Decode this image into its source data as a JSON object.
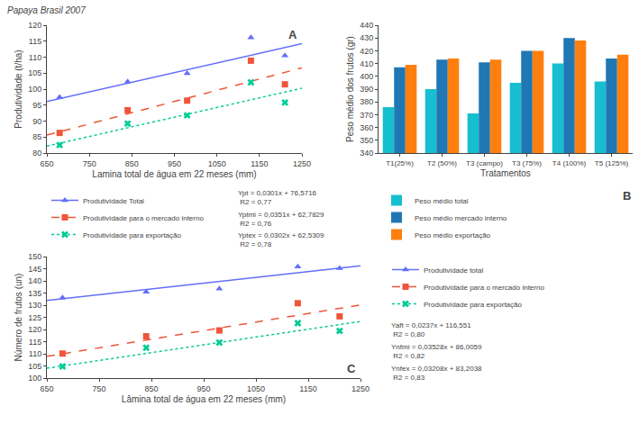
{
  "title": "Papaya Brasil 2007",
  "chart_data": [
    {
      "type": "scatter",
      "title": "A",
      "xlabel": "Lamina total de água em 22 meses (mm)",
      "ylabel": "Produtividade (t/ha)",
      "xlim": [
        650,
        1250
      ],
      "ylim": [
        80,
        120
      ],
      "xticks": [
        650,
        750,
        850,
        950,
        1050,
        1150,
        1250
      ],
      "yticks": [
        80,
        85,
        90,
        95,
        100,
        105,
        110,
        115,
        120
      ],
      "grid": false,
      "legend": "bottom",
      "annotations": [
        "Ypt = 0,0301x + 76,5716\n R2 = 0,77",
        "Yptmi = 0,0351x + 62,7829\n R2 = 0,76",
        "Yptex = 0,0302x + 62,5309\n R2 = 0,78"
      ],
      "series": [
        {
          "name": "Produtividade Total",
          "color": "#636efa",
          "marker": "triangle-up",
          "line_style": "solid",
          "x": [
            680,
            840,
            980,
            1130,
            1210
          ],
          "values": [
            97.5,
            102.3,
            104.9,
            116.1,
            110.5
          ],
          "fit": {
            "x": [
              650,
              1250
            ],
            "values": [
              96.1366,
              114.1966
            ]
          }
        },
        {
          "name": "Produtividade para o mercado interno",
          "color": "#ef553b",
          "marker": "square",
          "line_style": "dash",
          "x": [
            680,
            840,
            980,
            1130,
            1210
          ],
          "values": [
            86.3,
            93.4,
            96.4,
            108.9,
            101.5
          ],
          "fit": {
            "x": [
              650,
              1250
            ],
            "values": [
              85.5979,
              106.6579
            ]
          }
        },
        {
          "name": "Produtividade para exportação",
          "color": "#00cc96",
          "marker": "x",
          "line_style": "dot",
          "x": [
            680,
            840,
            980,
            1130,
            1210
          ],
          "values": [
            82.5,
            89.2,
            91.8,
            102.1,
            95.8
          ],
          "fit": {
            "x": [
              650,
              1250
            ],
            "values": [
              82.1609,
              100.2809
            ]
          }
        }
      ]
    },
    {
      "type": "bar",
      "title": "B",
      "xlabel": "Tratamentos",
      "ylabel": "Peso médio dos frutos (gr)",
      "categories": [
        "T1(25%)",
        "T2 (50%)",
        "T3 (campo)",
        "T3 (75%)",
        "T4 (100%)",
        "T5 (125%)"
      ],
      "ylim": [
        340,
        440
      ],
      "yticks": [
        340,
        350,
        360,
        370,
        380,
        390,
        400,
        410,
        420,
        430,
        440
      ],
      "grid": false,
      "legend": "bottom",
      "series": [
        {
          "name": "Peso médio total",
          "values": [
            376,
            390,
            371,
            395,
            410,
            396
          ]
        },
        {
          "name": "Peso médio mercado interno",
          "values": [
            407,
            413,
            411,
            420,
            430,
            414
          ]
        },
        {
          "name": "Peso médio exportação",
          "values": [
            409,
            414,
            413,
            420,
            428,
            417
          ]
        }
      ]
    },
    {
      "type": "scatter",
      "title": "C",
      "xlabel": "Lâmina total de água em 22 meses (mm)",
      "ylabel": "Número de frutos (un)",
      "xlim": [
        650,
        1250
      ],
      "ylim": [
        100,
        150
      ],
      "xticks": [
        650,
        750,
        850,
        950,
        1050,
        1150,
        1250
      ],
      "yticks": [
        100,
        105,
        110,
        115,
        120,
        125,
        130,
        135,
        140,
        145,
        150
      ],
      "grid": false,
      "legend": "right",
      "annotations": [
        "Yaft = 0,0237x + 116,551\n R2 = 0,80",
        "Ynfmi = 0,03528x + 86,0059\n R2 = 0,82",
        "Ynfex = 0,03208x + 83,2038\n R2 = 0,83"
      ],
      "series": [
        {
          "name": "Produtividade total",
          "color": "#636efa",
          "marker": "triangle-up",
          "line_style": "solid",
          "x": [
            680,
            840,
            980,
            1130,
            1210
          ],
          "values": [
            133.1,
            135.5,
            136.8,
            145.8,
            145.2
          ],
          "fit": {
            "x": [
              650,
              1250
            ],
            "values": [
              131.956,
              146.176
            ]
          }
        },
        {
          "name": "Produtividade para o mercado interno",
          "color": "#ef553b",
          "marker": "square",
          "line_style": "dash",
          "x": [
            680,
            840,
            980,
            1130,
            1210
          ],
          "values": [
            110.1,
            117.2,
            119.6,
            130.8,
            125.4
          ],
          "fit": {
            "x": [
              650,
              1250
            ],
            "values": [
              108.9379,
              130.1059
            ]
          }
        },
        {
          "name": "Produtividade para exportação",
          "color": "#00cc96",
          "marker": "x",
          "line_style": "dot",
          "x": [
            680,
            840,
            980,
            1130,
            1210
          ],
          "values": [
            104.8,
            112.5,
            114.6,
            122.6,
            119.4
          ],
          "fit": {
            "x": [
              650,
              1250
            ],
            "values": [
              104.0558,
              123.3038
            ]
          }
        }
      ]
    }
  ]
}
